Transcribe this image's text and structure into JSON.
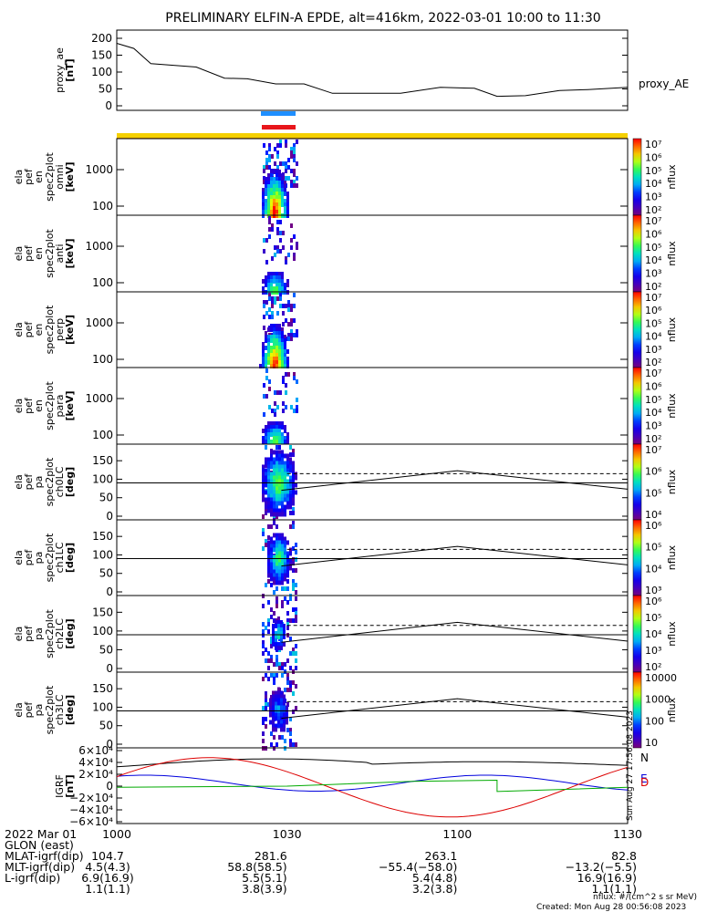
{
  "title": "PRELIMINARY ELFIN-A EPDE, alt=416km, 2022-03-01 10:00 to 11:30",
  "chart_data": [
    {
      "type": "line",
      "ylabel_lines": [
        "proxy_ae",
        "[nT]"
      ],
      "series_label": "proxy_AE",
      "yticks": [
        "200",
        "150",
        "100",
        "50",
        "0"
      ],
      "ylim": [
        0,
        210
      ],
      "x_minutes": [
        0,
        3,
        6,
        10,
        14,
        19,
        23,
        28,
        33,
        38,
        44,
        50,
        57,
        63,
        67,
        72,
        78,
        83,
        90
      ],
      "values": [
        185,
        170,
        125,
        120,
        115,
        82,
        80,
        65,
        65,
        37,
        37,
        37,
        55,
        52,
        28,
        30,
        45,
        48,
        55
      ]
    },
    {
      "type": "heatmap",
      "ylabel_lines": [
        "ela",
        "pef",
        "en",
        "spec2plot",
        "omni",
        "[keV]"
      ],
      "yticks": [
        "1000",
        "100"
      ],
      "colorbar_ticks": [
        "10⁷",
        "10⁶",
        "10⁵",
        "10⁴",
        "10³",
        "10²"
      ],
      "colorbar_title": "nflux"
    },
    {
      "type": "heatmap",
      "ylabel_lines": [
        "ela",
        "pef",
        "en",
        "spec2plot",
        "anti",
        "[keV]"
      ],
      "yticks": [
        "1000",
        "100"
      ],
      "colorbar_ticks": [
        "10⁷",
        "10⁶",
        "10⁵",
        "10⁴",
        "10³",
        "10²"
      ],
      "colorbar_title": "nflux"
    },
    {
      "type": "heatmap",
      "ylabel_lines": [
        "ela",
        "pef",
        "en",
        "spec2plot",
        "perp",
        "[keV]"
      ],
      "yticks": [
        "1000",
        "100"
      ],
      "colorbar_ticks": [
        "10⁷",
        "10⁶",
        "10⁵",
        "10⁴",
        "10³",
        "10²"
      ],
      "colorbar_title": "nflux"
    },
    {
      "type": "heatmap",
      "ylabel_lines": [
        "ela",
        "pef",
        "en",
        "spec2plot",
        "para",
        "[keV]"
      ],
      "yticks": [
        "1000",
        "100"
      ],
      "colorbar_ticks": [
        "10⁷",
        "10⁶",
        "10⁵",
        "10⁴",
        "10³",
        "10²"
      ],
      "colorbar_title": "nflux"
    },
    {
      "type": "heatmap",
      "ylabel_lines": [
        "ela",
        "pef",
        "pa",
        "spec2plot",
        "ch0LC",
        "[deg]"
      ],
      "yticks": [
        "150",
        "100",
        "50",
        "0"
      ],
      "colorbar_ticks": [
        "10⁷",
        "10⁶",
        "10⁵",
        "10⁴"
      ],
      "colorbar_title": "nflux"
    },
    {
      "type": "heatmap",
      "ylabel_lines": [
        "ela",
        "pef",
        "pa",
        "spec2plot",
        "ch1LC",
        "[deg]"
      ],
      "yticks": [
        "150",
        "100",
        "50",
        "0"
      ],
      "colorbar_ticks": [
        "10⁶",
        "10⁵",
        "10⁴",
        "10³"
      ],
      "colorbar_title": "nflux"
    },
    {
      "type": "heatmap",
      "ylabel_lines": [
        "ela",
        "pef",
        "pa",
        "spec2plot",
        "ch2LC",
        "[deg]"
      ],
      "yticks": [
        "150",
        "100",
        "50",
        "0"
      ],
      "colorbar_ticks": [
        "10⁶",
        "10⁵",
        "10⁴",
        "10³",
        "10²"
      ],
      "colorbar_title": "nflux"
    },
    {
      "type": "heatmap",
      "ylabel_lines": [
        "ela",
        "pef",
        "pa",
        "spec2plot",
        "ch3LC",
        "[deg]"
      ],
      "yticks": [
        "150",
        "100",
        "50",
        "0"
      ],
      "colorbar_ticks": [
        "10000",
        "1000",
        "100",
        "10"
      ],
      "colorbar_title": "nflux"
    },
    {
      "type": "line",
      "ylabel_lines": [
        "IGRF",
        "[nT]"
      ],
      "yticks": [
        "6×10⁴",
        "4×10⁴",
        "2×10⁴",
        "0",
        "−2×10⁴",
        "−4×10⁴",
        "−6×10⁴"
      ],
      "series": [
        {
          "name": "N",
          "color": "#000000"
        },
        {
          "name": "E",
          "color": "#0000dd"
        },
        {
          "name": "D",
          "color": "#dd0000"
        }
      ],
      "green_color": "#00aa00"
    }
  ],
  "xaxis": {
    "ticks": [
      "1000",
      "1030",
      "1100",
      "1130"
    ],
    "rows": [
      {
        "label": "2022 Mar 01",
        "values": [
          "",
          "",
          "",
          ""
        ]
      },
      {
        "label": "GLON (east)",
        "values": [
          "104.7",
          "281.6",
          "263.1",
          "82.8"
        ]
      },
      {
        "label": "MLAT-igrf(dip)",
        "values": [
          "4.5(4.3)",
          "58.8(58.5)",
          "−55.4(−58.0)",
          "−13.2(−5.5)"
        ]
      },
      {
        "label": "MLT-igrf(dip)",
        "values": [
          "6.9(16.9)",
          "5.5(5.1)",
          "5.4(4.8)",
          "16.9(16.9)"
        ]
      },
      {
        "label": "L-igrf(dip)",
        "values": [
          "1.1(1.1)",
          "3.8(3.9)",
          "3.2(3.8)",
          "1.1(1.1)"
        ]
      }
    ]
  },
  "footer": {
    "units": "nflux: #/(cm^2 s sr MeV)",
    "created": "Created: Mon Aug 28 00:56:08 2023",
    "side_stamp": "Sun Aug 27 17:56:08 2023"
  },
  "colors": {
    "bar_blue": "#1f8fff",
    "bar_red": "#e8161b",
    "bar_yellow": "#f5d000",
    "bar_yellow_dark": "#e09a00"
  }
}
